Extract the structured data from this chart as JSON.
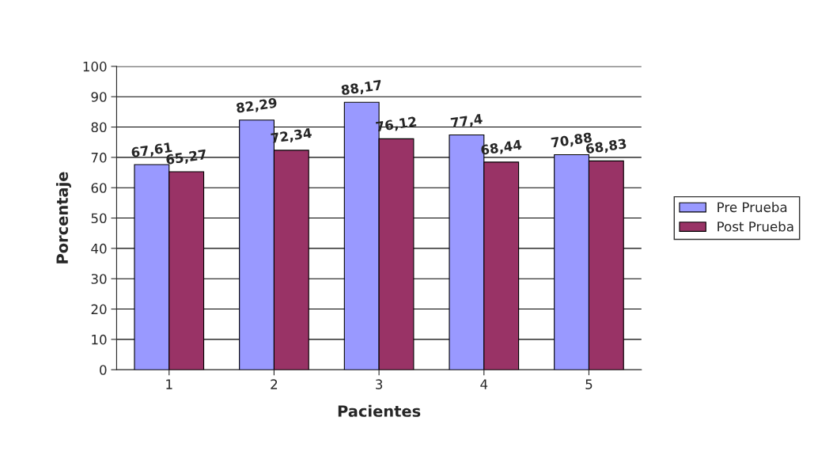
{
  "chart_data": {
    "type": "bar",
    "xlabel": "Pacientes",
    "ylabel": "Porcentaje",
    "categories": [
      "1",
      "2",
      "3",
      "4",
      "5"
    ],
    "series": [
      {
        "name": "Pre Prueba",
        "color": "#9999ff",
        "values": [
          67.61,
          82.29,
          88.17,
          77.4,
          70.88
        ],
        "value_labels": [
          "67,61",
          "82,29",
          "88,17",
          "77,4",
          "70,88"
        ]
      },
      {
        "name": "Post Prueba",
        "color": "#993366",
        "values": [
          65.27,
          72.34,
          76.12,
          68.44,
          68.83
        ],
        "value_labels": [
          "65,27",
          "72,34",
          "76,12",
          "68,44",
          "68,83"
        ]
      }
    ],
    "ylim": [
      0,
      100
    ],
    "yticks": [
      0,
      10,
      20,
      30,
      40,
      50,
      60,
      70,
      80,
      90,
      100
    ],
    "grid": "y",
    "legend": "right"
  }
}
